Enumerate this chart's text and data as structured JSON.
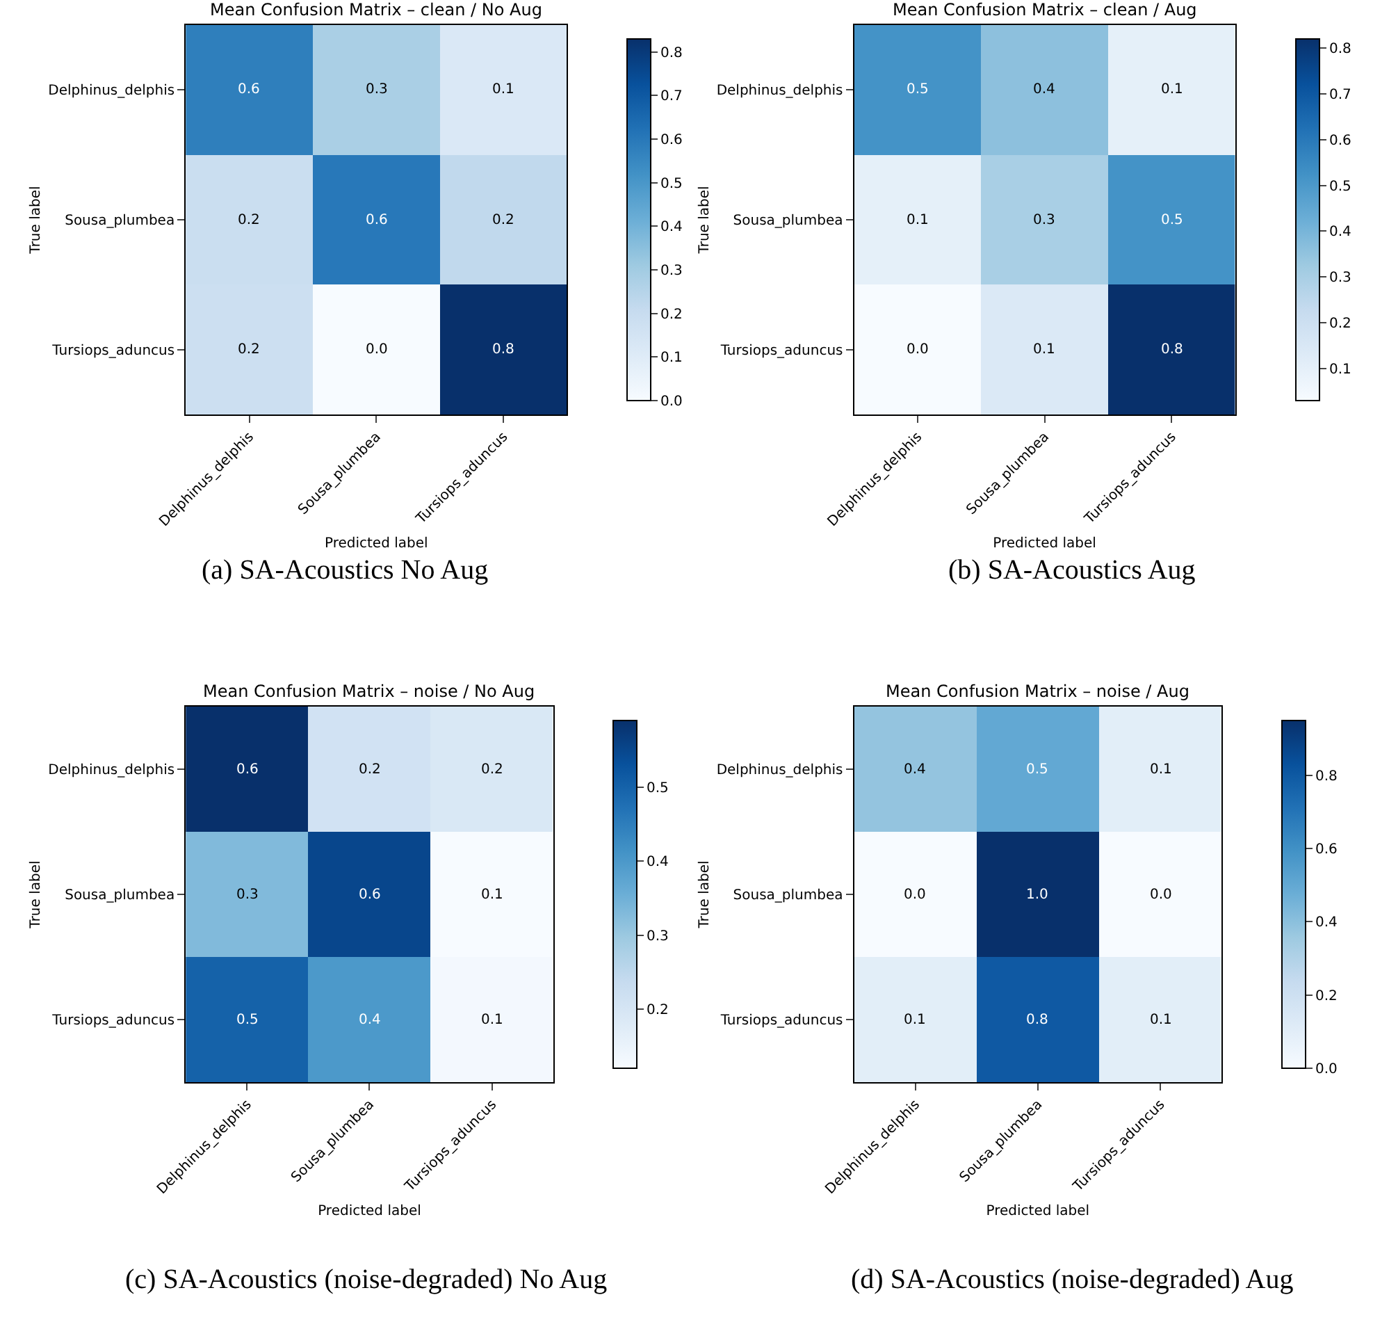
{
  "chart_data": [
    {
      "type": "heatmap",
      "title": "Mean Confusion Matrix – clean / No Aug",
      "xlabel": "Predicted label",
      "ylabel": "True label",
      "categories": [
        "Delphinus_delphis",
        "Sousa_plumbea",
        "Tursiops_aduncus"
      ],
      "y_categories": [
        "Delphinus_delphis",
        "Sousa_plumbea",
        "Tursiops_aduncus"
      ],
      "cells": [
        [
          0.58,
          0.28,
          0.12
        ],
        [
          0.19,
          0.6,
          0.22
        ],
        [
          0.18,
          0.0,
          0.83
        ]
      ],
      "cell_labels": [
        [
          "0.6",
          "0.3",
          "0.1"
        ],
        [
          "0.2",
          "0.6",
          "0.2"
        ],
        [
          "0.2",
          "0.0",
          "0.8"
        ]
      ],
      "clim": [
        0.0,
        0.83
      ],
      "cticks": [
        {
          "value": 0.0,
          "label": "0.0"
        },
        0.1,
        0.2,
        0.3,
        0.4,
        0.5,
        0.6,
        0.7,
        0.8
      ],
      "annotations": [
        "(a) SA-Acoustics No Aug"
      ]
    },
    {
      "type": "heatmap",
      "title": "Mean Confusion Matrix – clean / Aug",
      "xlabel": "Predicted label",
      "ylabel": "True label",
      "categories": [
        "Delphinus_delphis",
        "Sousa_plumbea",
        "Tursiops_aduncus"
      ],
      "y_categories": [
        "Delphinus_delphis",
        "Sousa_plumbea",
        "Tursiops_aduncus"
      ],
      "cells": [
        [
          0.52,
          0.36,
          0.1
        ],
        [
          0.1,
          0.3,
          0.52
        ],
        [
          0.03,
          0.14,
          0.82
        ]
      ],
      "cell_labels": [
        [
          "0.5",
          "0.4",
          "0.1"
        ],
        [
          "0.1",
          "0.3",
          "0.5"
        ],
        [
          "0.0",
          "0.1",
          "0.8"
        ]
      ],
      "clim": [
        0.03,
        0.82
      ],
      "cticks": [
        0.1,
        0.2,
        0.3,
        0.4,
        0.5,
        0.6,
        0.7,
        0.8
      ],
      "annotations": [
        "(b) SA-Acoustics Aug"
      ]
    },
    {
      "type": "heatmap",
      "title": "Mean Confusion Matrix – noise / No Aug",
      "xlabel": "Predicted label",
      "ylabel": "True label",
      "categories": [
        "Delphinus_delphis",
        "Sousa_plumbea",
        "Tursiops_aduncus"
      ],
      "y_categories": [
        "Delphinus_delphis",
        "Sousa_plumbea",
        "Tursiops_aduncus"
      ],
      "cells": [
        [
          0.59,
          0.21,
          0.19
        ],
        [
          0.33,
          0.55,
          0.12
        ],
        [
          0.5,
          0.4,
          0.13
        ]
      ],
      "cell_labels": [
        [
          "0.6",
          "0.2",
          "0.2"
        ],
        [
          "0.3",
          "0.6",
          "0.1"
        ],
        [
          "0.5",
          "0.4",
          "0.1"
        ]
      ],
      "clim": [
        0.12,
        0.59
      ],
      "cticks": [
        0.2,
        0.3,
        0.4,
        0.5
      ],
      "annotations": [
        "(c) SA-Acoustics (noise-degraded) No Aug"
      ]
    },
    {
      "type": "heatmap",
      "title": "Mean Confusion Matrix – noise / Aug",
      "xlabel": "Predicted label",
      "ylabel": "True label",
      "categories": [
        "Delphinus_delphis",
        "Sousa_plumbea",
        "Tursiops_aduncus"
      ],
      "y_categories": [
        "Delphinus_delphis",
        "Sousa_plumbea",
        "Tursiops_aduncus"
      ],
      "cells": [
        [
          0.38,
          0.5,
          0.1
        ],
        [
          0.0,
          0.95,
          0.0
        ],
        [
          0.1,
          0.8,
          0.1
        ]
      ],
      "cell_labels": [
        [
          "0.4",
          "0.5",
          "0.1"
        ],
        [
          "0.0",
          "1.0",
          "0.0"
        ],
        [
          "0.1",
          "0.8",
          "0.1"
        ]
      ],
      "clim": [
        0.0,
        0.95
      ],
      "cticks": [
        {
          "value": 0.0,
          "label": "0.0"
        },
        0.2,
        0.4,
        0.6,
        0.8
      ],
      "annotations": [
        "(d) SA-Acoustics (noise-degraded) Aug"
      ]
    }
  ]
}
